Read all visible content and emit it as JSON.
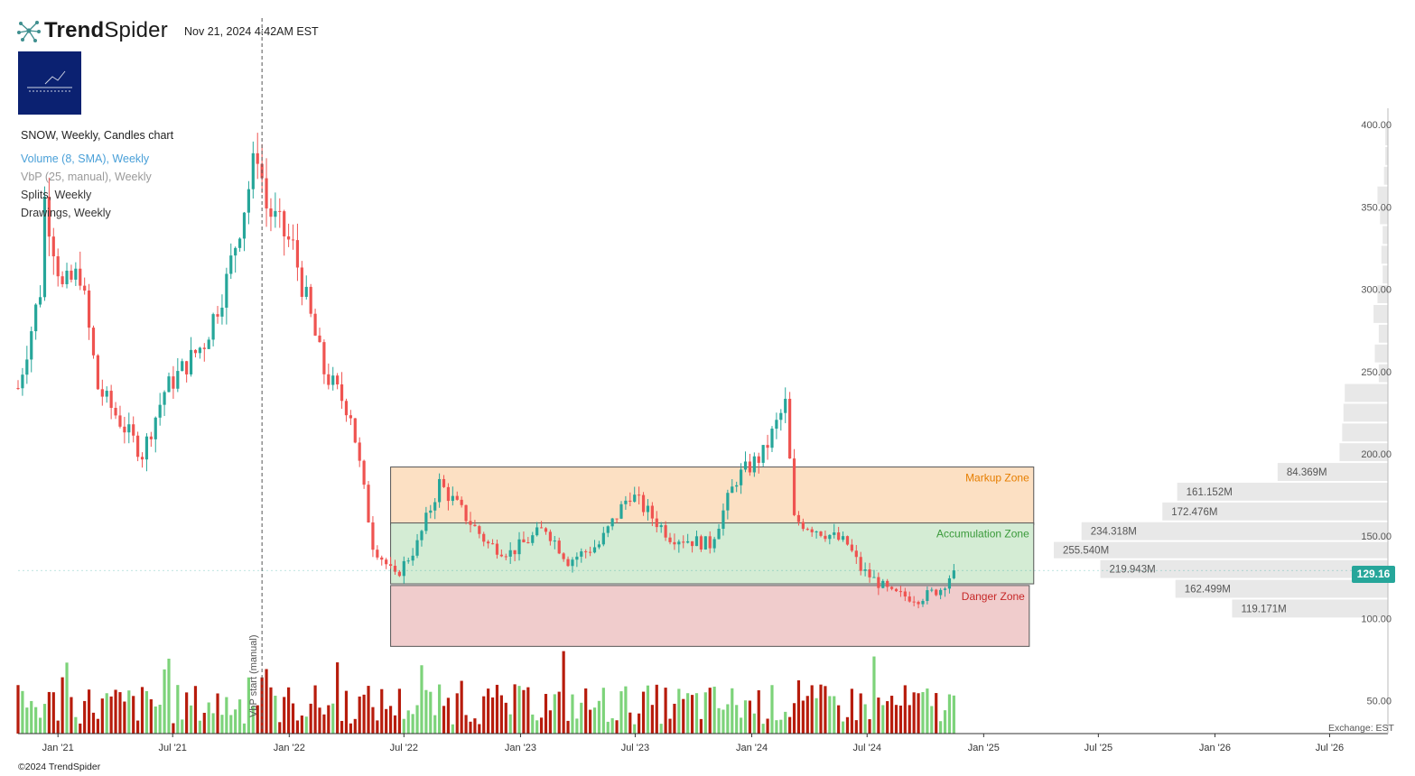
{
  "header": {
    "brand_bold": "Trend",
    "brand_light": "Spider",
    "timestamp": "Nov 21, 2024 4:42AM EST"
  },
  "legend": {
    "title": "SNOW, Weekly, Candles chart",
    "volume": "Volume (8, SMA), Weekly",
    "vbp": "VbP (25, manual), Weekly",
    "splits": "Splits, Weekly",
    "drawings": "Drawings, Weekly"
  },
  "footer": {
    "copyright": "©2024 TrendSpider",
    "exchange": "Exchange: EST"
  },
  "colors": {
    "up": "#26a69a",
    "down": "#ef5350",
    "volume_up": "#7dd37a",
    "volume_down": "#b71c0c",
    "markup_zone": "#fce0c3",
    "accumulation_zone": "#d4ecd4",
    "danger_zone": "#f0cccc",
    "vbp_bar": "#e8e8e8",
    "brand_logo": "#0b2171"
  },
  "chart_data": {
    "type": "candlestick",
    "symbol": "SNOW",
    "interval": "Weekly",
    "x_axis": {
      "ticks": [
        "Jan '21",
        "Jul '21",
        "Jan '22",
        "Jul '22",
        "Jan '23",
        "Jul '23",
        "Jan '24",
        "Jul '24",
        "Jan '25",
        "Jul '25",
        "Jan '26",
        "Jul '26"
      ],
      "range": [
        "2020-10-30",
        "2026-10-01"
      ]
    },
    "y_axis": {
      "ticks": [
        "50.00",
        "100.00",
        "150.00",
        "200.00",
        "250.00",
        "300.00",
        "350.00",
        "400.00"
      ],
      "range": [
        30,
        410
      ],
      "side": "right"
    },
    "price_anchors": [
      {
        "date": "2020-10-30",
        "price": 240
      },
      {
        "date": "2020-12-04",
        "price": 300
      },
      {
        "date": "2020-12-11",
        "price": 355
      },
      {
        "date": "2021-01-08",
        "price": 300
      },
      {
        "date": "2021-02-05",
        "price": 310
      },
      {
        "date": "2021-03-05",
        "price": 240
      },
      {
        "date": "2021-05-14",
        "price": 200
      },
      {
        "date": "2021-06-18",
        "price": 238
      },
      {
        "date": "2021-08-20",
        "price": 268
      },
      {
        "date": "2021-09-24",
        "price": 305
      },
      {
        "date": "2021-11-12",
        "price": 385
      },
      {
        "date": "2021-11-26",
        "price": 350
      },
      {
        "date": "2022-01-07",
        "price": 325
      },
      {
        "date": "2022-02-25",
        "price": 250
      },
      {
        "date": "2022-04-08",
        "price": 225
      },
      {
        "date": "2022-05-13",
        "price": 145
      },
      {
        "date": "2022-06-17",
        "price": 125
      },
      {
        "date": "2022-07-22",
        "price": 145
      },
      {
        "date": "2022-08-26",
        "price": 182
      },
      {
        "date": "2022-09-30",
        "price": 165
      },
      {
        "date": "2022-11-11",
        "price": 145
      },
      {
        "date": "2022-12-16",
        "price": 140
      },
      {
        "date": "2023-02-10",
        "price": 155
      },
      {
        "date": "2023-03-17",
        "price": 135
      },
      {
        "date": "2023-05-05",
        "price": 145
      },
      {
        "date": "2023-06-23",
        "price": 176
      },
      {
        "date": "2023-08-25",
        "price": 150
      },
      {
        "date": "2023-10-27",
        "price": 145
      },
      {
        "date": "2023-12-08",
        "price": 185
      },
      {
        "date": "2024-01-19",
        "price": 200
      },
      {
        "date": "2024-02-23",
        "price": 230
      },
      {
        "date": "2024-03-08",
        "price": 160
      },
      {
        "date": "2024-04-26",
        "price": 152
      },
      {
        "date": "2024-05-31",
        "price": 145
      },
      {
        "date": "2024-06-21",
        "price": 130
      },
      {
        "date": "2024-08-09",
        "price": 115
      },
      {
        "date": "2024-09-20",
        "price": 112
      },
      {
        "date": "2024-10-25",
        "price": 118
      },
      {
        "date": "2024-11-15",
        "price": 129.16
      }
    ],
    "last_price": "129.16",
    "vbp_start_label": "VbP start (manual)",
    "vbp_start_date": "2021-11-19",
    "zones": [
      {
        "label": "Markup Zone",
        "color": "#e67e00",
        "from": "2022-06-10",
        "to": "2025-03-21",
        "y_low": 157,
        "y_high": 192
      },
      {
        "label": "Accumulation Zone",
        "color": "#3a9a3a",
        "from": "2022-06-10",
        "to": "2025-03-21",
        "y_low": 121,
        "y_high": 158
      },
      {
        "label": "Danger Zone",
        "color": "#c62828",
        "from": "2022-06-10",
        "to": "2025-03-14",
        "y_low": 83,
        "y_high": 120
      }
    ],
    "volume_by_price": [
      {
        "price_low": 100,
        "price_high": 112,
        "volume": 119.171,
        "label": "119.171M"
      },
      {
        "price_low": 112,
        "price_high": 124,
        "volume": 162.499,
        "label": "162.499M"
      },
      {
        "price_low": 124,
        "price_high": 136,
        "volume": 219.943,
        "label": "219.943M"
      },
      {
        "price_low": 136,
        "price_high": 147,
        "volume": 255.54,
        "label": "255.540M"
      },
      {
        "price_low": 147,
        "price_high": 159,
        "volume": 234.318,
        "label": "234.318M"
      },
      {
        "price_low": 159,
        "price_high": 171,
        "volume": 172.476,
        "label": "172.476M"
      },
      {
        "price_low": 171,
        "price_high": 183,
        "volume": 161.152,
        "label": "161.152M"
      },
      {
        "price_low": 183,
        "price_high": 195,
        "volume": 84.369,
        "label": "84.369M"
      },
      {
        "price_low": 195,
        "price_high": 207,
        "volume": 37
      },
      {
        "price_low": 207,
        "price_high": 219,
        "volume": 35
      },
      {
        "price_low": 219,
        "price_high": 231,
        "volume": 34
      },
      {
        "price_low": 231,
        "price_high": 243,
        "volume": 33
      },
      {
        "price_low": 243,
        "price_high": 255,
        "volume": 7
      },
      {
        "price_low": 255,
        "price_high": 267,
        "volume": 10
      },
      {
        "price_low": 267,
        "price_high": 279,
        "volume": 7
      },
      {
        "price_low": 279,
        "price_high": 291,
        "volume": 11
      },
      {
        "price_low": 291,
        "price_high": 303,
        "volume": 8
      },
      {
        "price_low": 303,
        "price_high": 315,
        "volume": 4
      },
      {
        "price_low": 315,
        "price_high": 327,
        "volume": 5
      },
      {
        "price_low": 327,
        "price_high": 339,
        "volume": 4
      },
      {
        "price_low": 339,
        "price_high": 351,
        "volume": 6
      },
      {
        "price_low": 351,
        "price_high": 363,
        "volume": 8
      },
      {
        "price_low": 363,
        "price_high": 375,
        "volume": 3
      },
      {
        "price_low": 375,
        "price_high": 387,
        "volume": 2
      },
      {
        "price_low": 387,
        "price_high": 399,
        "volume": 2
      }
    ]
  }
}
